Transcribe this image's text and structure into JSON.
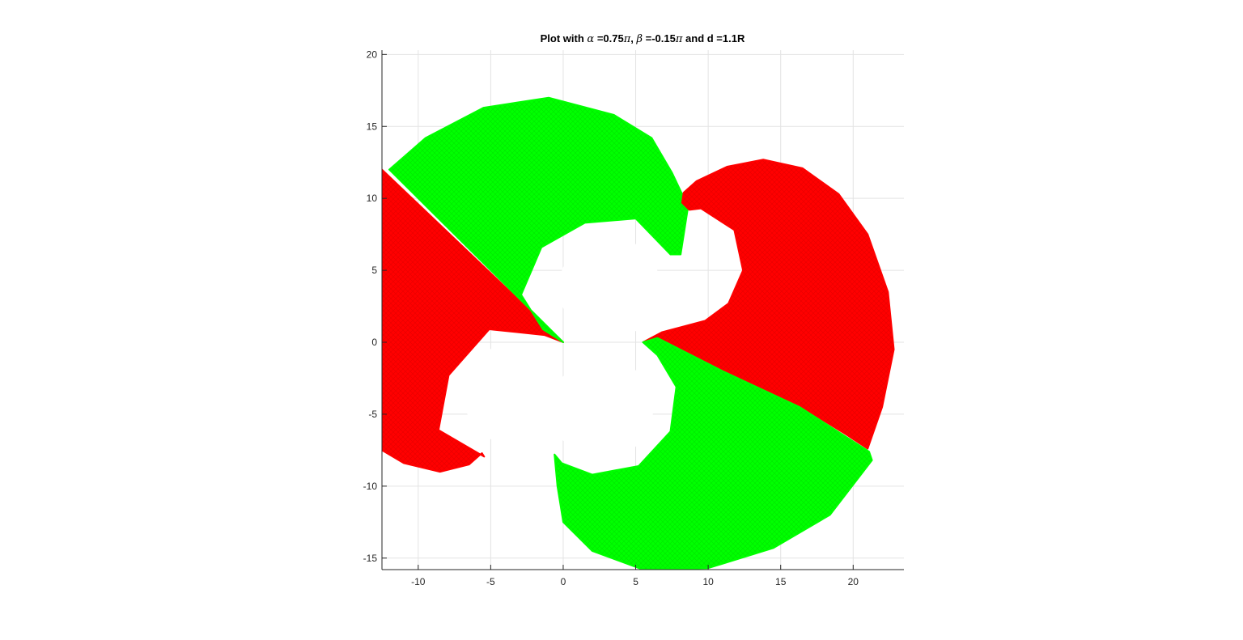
{
  "chart_data": {
    "type": "scatter",
    "title": {
      "prefix": "Plot with ",
      "alpha_symbol": "α",
      "alpha_value": " =0.75",
      "pi1": "π",
      "mid": ", ",
      "beta_symbol": "β",
      "beta_value": " =-0.15",
      "pi2": "π",
      "suffix": " and d =1.1R"
    },
    "xlabel": "",
    "ylabel": "",
    "xlim": [
      -12.5,
      23.5
    ],
    "ylim": [
      -15.8,
      20.3
    ],
    "xticks": [
      -10,
      -5,
      0,
      5,
      10,
      15,
      20
    ],
    "xtick_labels": [
      "-10",
      "-5",
      "0",
      "5",
      "10",
      "15",
      "20"
    ],
    "yticks": [
      -15,
      -10,
      -5,
      0,
      5,
      10,
      15,
      20
    ],
    "ytick_labels": [
      "-15",
      "-10",
      "-5",
      "0",
      "5",
      "10",
      "15",
      "20"
    ],
    "grid": true,
    "marker": "asterisk",
    "hole_radius": 3.5,
    "series": [
      {
        "color": "#ff0000",
        "outline": [
          [
            0,
            0
          ],
          [
            -12.5,
            12
          ],
          [
            -12.5,
            -7.5
          ],
          [
            -11,
            -8.4
          ],
          [
            -8.5,
            -9
          ],
          [
            -6.5,
            -8.5
          ],
          [
            -5.6,
            -7.7
          ],
          [
            -5.45,
            -7.95
          ],
          [
            -8.6,
            -6.1
          ],
          [
            -7.9,
            -2.3
          ],
          [
            -5.1,
            0.9
          ],
          [
            -1.3,
            0.5
          ]
        ]
      },
      {
        "color": "#00ff00",
        "outline": [
          [
            0,
            0
          ],
          [
            -1.4,
            0.9
          ],
          [
            -2.9,
            3.3
          ],
          [
            -1.5,
            6.6
          ],
          [
            1.5,
            8.3
          ],
          [
            5,
            8.6
          ],
          [
            7.4,
            6.1
          ],
          [
            8.1,
            6.1
          ],
          [
            8.6,
            9.3
          ],
          [
            8.6,
            10.3
          ],
          [
            8.2,
            10.3
          ],
          [
            7.5,
            11.8
          ],
          [
            6.1,
            14.2
          ],
          [
            3.5,
            15.8
          ],
          [
            -1,
            17
          ],
          [
            -5.5,
            16.3
          ],
          [
            -9.5,
            14.2
          ],
          [
            -12,
            12
          ]
        ]
      },
      {
        "color": "#ff0000",
        "outline": [
          [
            5.5,
            0
          ],
          [
            6.8,
            0.7
          ],
          [
            8.3,
            1.1
          ],
          [
            9.8,
            1.5
          ],
          [
            11.4,
            2.7
          ],
          [
            12.4,
            5
          ],
          [
            11.8,
            7.8
          ],
          [
            9.5,
            9.3
          ],
          [
            8.7,
            9.2
          ],
          [
            8.2,
            9.7
          ],
          [
            8.3,
            10.4
          ],
          [
            9.2,
            11.2
          ],
          [
            11.3,
            12.2
          ],
          [
            13.8,
            12.7
          ],
          [
            16.5,
            12.1
          ],
          [
            19,
            10.3
          ],
          [
            21,
            7.5
          ],
          [
            22.4,
            3.5
          ],
          [
            22.8,
            -0.5
          ],
          [
            22,
            -4.5
          ],
          [
            21,
            -7.4
          ],
          [
            19.5,
            -6.4
          ],
          [
            16.3,
            -4.4
          ],
          [
            11,
            -1.9
          ],
          [
            7,
            0.1
          ]
        ]
      },
      {
        "color": "#00ff00",
        "outline": [
          [
            5.5,
            0
          ],
          [
            6.5,
            -0.9
          ],
          [
            7.8,
            -3.1
          ],
          [
            7.4,
            -6.2
          ],
          [
            5.2,
            -8.6
          ],
          [
            2,
            -9.2
          ],
          [
            -0.1,
            -8.4
          ],
          [
            -0.6,
            -7.8
          ],
          [
            -0.4,
            -10
          ],
          [
            0,
            -12.5
          ],
          [
            2,
            -14.5
          ],
          [
            5.5,
            -15.8
          ],
          [
            10,
            -15.7
          ],
          [
            14.5,
            -14.3
          ],
          [
            18.4,
            -12
          ],
          [
            21.3,
            -8.2
          ],
          [
            21.1,
            -7.6
          ],
          [
            19.4,
            -6.5
          ],
          [
            16.3,
            -4.5
          ],
          [
            11,
            -2
          ],
          [
            6.5,
            0.3
          ]
        ]
      }
    ],
    "holes": [
      {
        "cx": 3.2,
        "cy": 3.8,
        "r": 3.5
      },
      {
        "cx": -3.4,
        "cy": -3.6,
        "r": 3.5
      },
      {
        "cx": 2.7,
        "cy": -4.6,
        "r": 3.5
      }
    ]
  }
}
